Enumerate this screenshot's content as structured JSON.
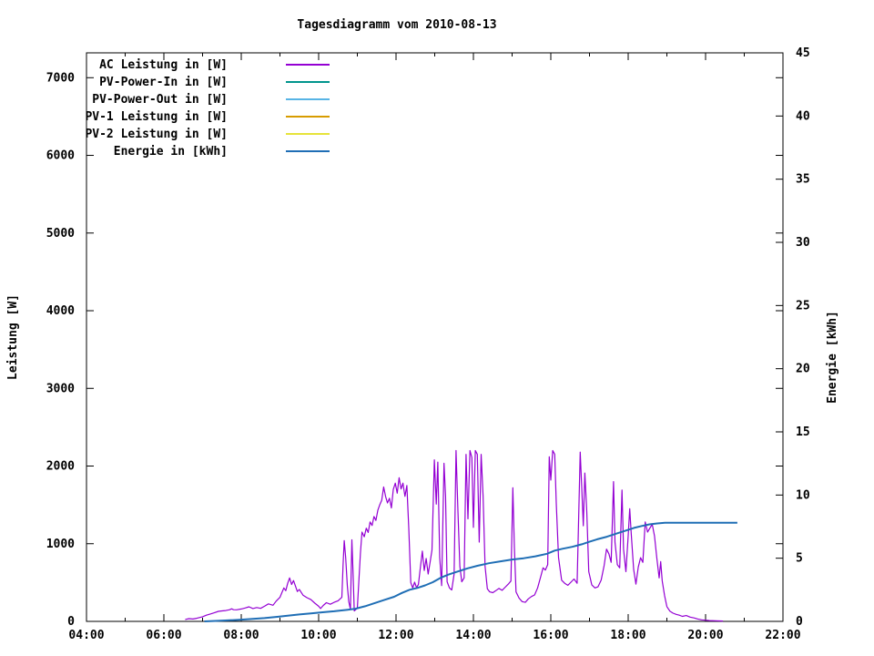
{
  "chart_data": {
    "type": "line",
    "title": "Tagesdiagramm vom 2010-08-13",
    "ylabel": "Leistung [W]",
    "y2label": "Energie [kWh]",
    "grid": false,
    "legend_position": "top-left-inside",
    "x_axis": {
      "unit": "time",
      "range_hours": [
        4,
        22
      ],
      "major_tick_hours": [
        4,
        6,
        8,
        10,
        12,
        14,
        16,
        18,
        20,
        22
      ],
      "major_tick_labels": [
        "04:00",
        "06:00",
        "08:00",
        "10:00",
        "12:00",
        "14:00",
        "16:00",
        "18:00",
        "20:00",
        "22:00"
      ],
      "minor_tick_hours": [
        5,
        7,
        9,
        11,
        13,
        15,
        17,
        19,
        21
      ]
    },
    "y_axis": {
      "label": "Leistung [W]",
      "range": [
        0,
        7320
      ],
      "tick_values": [
        0,
        1000,
        2000,
        3000,
        4000,
        5000,
        6000,
        7000
      ],
      "tick_labels": [
        "0",
        "1000",
        "2000",
        "3000",
        "4000",
        "5000",
        "6000",
        "7000"
      ]
    },
    "y2_axis": {
      "label": "Energie [kWh]",
      "range": [
        0,
        45
      ],
      "tick_values": [
        0,
        5,
        10,
        15,
        20,
        25,
        30,
        35,
        40,
        45
      ],
      "tick_labels": [
        "0",
        "5",
        "10",
        "15",
        "20",
        "25",
        "30",
        "35",
        "40",
        "45"
      ]
    },
    "series": [
      {
        "name": "AC Leistung in [W]",
        "color": "#9400d3",
        "axis": "y1",
        "width": 1.2,
        "points": [
          [
            6.55,
            25
          ],
          [
            6.65,
            35
          ],
          [
            6.75,
            30
          ],
          [
            6.85,
            40
          ],
          [
            7.0,
            60
          ],
          [
            7.1,
            80
          ],
          [
            7.2,
            95
          ],
          [
            7.3,
            110
          ],
          [
            7.41,
            129
          ],
          [
            7.5,
            135
          ],
          [
            7.6,
            140
          ],
          [
            7.7,
            150
          ],
          [
            7.75,
            162
          ],
          [
            7.8,
            150
          ],
          [
            7.88,
            149
          ],
          [
            8.0,
            160
          ],
          [
            8.1,
            172
          ],
          [
            8.2,
            188
          ],
          [
            8.3,
            165
          ],
          [
            8.4,
            178
          ],
          [
            8.5,
            168
          ],
          [
            8.6,
            195
          ],
          [
            8.7,
            225
          ],
          [
            8.82,
            208
          ],
          [
            8.9,
            260
          ],
          [
            9.0,
            310
          ],
          [
            9.05,
            370
          ],
          [
            9.1,
            430
          ],
          [
            9.15,
            395
          ],
          [
            9.2,
            490
          ],
          [
            9.25,
            560
          ],
          [
            9.3,
            475
          ],
          [
            9.35,
            525
          ],
          [
            9.4,
            455
          ],
          [
            9.45,
            385
          ],
          [
            9.5,
            410
          ],
          [
            9.6,
            335
          ],
          [
            9.7,
            305
          ],
          [
            9.8,
            280
          ],
          [
            9.9,
            235
          ],
          [
            10.0,
            195
          ],
          [
            10.05,
            165
          ],
          [
            10.12,
            205
          ],
          [
            10.2,
            240
          ],
          [
            10.3,
            220
          ],
          [
            10.4,
            245
          ],
          [
            10.5,
            265
          ],
          [
            10.6,
            310
          ],
          [
            10.63,
            720
          ],
          [
            10.66,
            1040
          ],
          [
            10.7,
            820
          ],
          [
            10.74,
            460
          ],
          [
            10.78,
            255
          ],
          [
            10.82,
            155
          ],
          [
            10.86,
            1050
          ],
          [
            10.89,
            620
          ],
          [
            10.92,
            135
          ],
          [
            11.0,
            170
          ],
          [
            11.08,
            880
          ],
          [
            11.12,
            1150
          ],
          [
            11.18,
            1090
          ],
          [
            11.23,
            1200
          ],
          [
            11.28,
            1145
          ],
          [
            11.33,
            1280
          ],
          [
            11.38,
            1235
          ],
          [
            11.43,
            1350
          ],
          [
            11.48,
            1300
          ],
          [
            11.53,
            1430
          ],
          [
            11.58,
            1500
          ],
          [
            11.63,
            1560
          ],
          [
            11.68,
            1730
          ],
          [
            11.73,
            1610
          ],
          [
            11.78,
            1525
          ],
          [
            11.83,
            1585
          ],
          [
            11.88,
            1460
          ],
          [
            11.93,
            1700
          ],
          [
            11.98,
            1780
          ],
          [
            12.03,
            1650
          ],
          [
            12.08,
            1850
          ],
          [
            12.13,
            1705
          ],
          [
            12.18,
            1780
          ],
          [
            12.23,
            1610
          ],
          [
            12.28,
            1750
          ],
          [
            12.33,
            1200
          ],
          [
            12.38,
            500
          ],
          [
            12.43,
            430
          ],
          [
            12.48,
            505
          ],
          [
            12.53,
            435
          ],
          [
            12.58,
            475
          ],
          [
            12.63,
            700
          ],
          [
            12.68,
            905
          ],
          [
            12.73,
            655
          ],
          [
            12.78,
            810
          ],
          [
            12.83,
            610
          ],
          [
            12.88,
            760
          ],
          [
            12.93,
            920
          ],
          [
            12.99,
            2080
          ],
          [
            13.04,
            1510
          ],
          [
            13.08,
            2050
          ],
          [
            13.13,
            820
          ],
          [
            13.18,
            460
          ],
          [
            13.24,
            2035
          ],
          [
            13.28,
            1610
          ],
          [
            13.32,
            510
          ],
          [
            13.38,
            430
          ],
          [
            13.44,
            405
          ],
          [
            13.5,
            610
          ],
          [
            13.55,
            2200
          ],
          [
            13.6,
            1420
          ],
          [
            13.65,
            710
          ],
          [
            13.7,
            510
          ],
          [
            13.76,
            560
          ],
          [
            13.81,
            2150
          ],
          [
            13.86,
            1320
          ],
          [
            13.91,
            2200
          ],
          [
            13.96,
            2110
          ],
          [
            14.0,
            1210
          ],
          [
            14.05,
            2200
          ],
          [
            14.1,
            2150
          ],
          [
            14.15,
            1020
          ],
          [
            14.2,
            2150
          ],
          [
            14.25,
            1620
          ],
          [
            14.3,
            710
          ],
          [
            14.36,
            420
          ],
          [
            14.42,
            380
          ],
          [
            14.5,
            370
          ],
          [
            14.58,
            395
          ],
          [
            14.66,
            425
          ],
          [
            14.74,
            400
          ],
          [
            14.82,
            440
          ],
          [
            14.9,
            480
          ],
          [
            14.97,
            520
          ],
          [
            15.02,
            1720
          ],
          [
            15.06,
            950
          ],
          [
            15.1,
            380
          ],
          [
            15.18,
            300
          ],
          [
            15.26,
            255
          ],
          [
            15.34,
            245
          ],
          [
            15.42,
            290
          ],
          [
            15.5,
            320
          ],
          [
            15.58,
            340
          ],
          [
            15.66,
            430
          ],
          [
            15.74,
            580
          ],
          [
            15.8,
            690
          ],
          [
            15.86,
            660
          ],
          [
            15.92,
            730
          ],
          [
            15.96,
            2120
          ],
          [
            16.0,
            1820
          ],
          [
            16.05,
            2200
          ],
          [
            16.1,
            2150
          ],
          [
            16.14,
            1520
          ],
          [
            16.2,
            820
          ],
          [
            16.28,
            530
          ],
          [
            16.36,
            490
          ],
          [
            16.44,
            465
          ],
          [
            16.52,
            505
          ],
          [
            16.6,
            545
          ],
          [
            16.68,
            490
          ],
          [
            16.76,
            2180
          ],
          [
            16.8,
            1720
          ],
          [
            16.84,
            1230
          ],
          [
            16.88,
            1910
          ],
          [
            16.93,
            1420
          ],
          [
            16.98,
            640
          ],
          [
            17.06,
            470
          ],
          [
            17.14,
            430
          ],
          [
            17.22,
            445
          ],
          [
            17.3,
            530
          ],
          [
            17.38,
            720
          ],
          [
            17.44,
            930
          ],
          [
            17.5,
            870
          ],
          [
            17.56,
            760
          ],
          [
            17.62,
            1800
          ],
          [
            17.66,
            1020
          ],
          [
            17.72,
            730
          ],
          [
            17.78,
            690
          ],
          [
            17.84,
            1690
          ],
          [
            17.88,
            930
          ],
          [
            17.94,
            640
          ],
          [
            18.0,
            1100
          ],
          [
            18.04,
            1450
          ],
          [
            18.08,
            1120
          ],
          [
            18.14,
            670
          ],
          [
            18.2,
            480
          ],
          [
            18.26,
            700
          ],
          [
            18.32,
            820
          ],
          [
            18.38,
            760
          ],
          [
            18.44,
            1280
          ],
          [
            18.5,
            1150
          ],
          [
            18.56,
            1200
          ],
          [
            18.62,
            1250
          ],
          [
            18.68,
            1100
          ],
          [
            18.74,
            820
          ],
          [
            18.8,
            560
          ],
          [
            18.84,
            770
          ],
          [
            18.88,
            520
          ],
          [
            18.94,
            330
          ],
          [
            19.0,
            190
          ],
          [
            19.08,
            130
          ],
          [
            19.16,
            105
          ],
          [
            19.24,
            90
          ],
          [
            19.32,
            80
          ],
          [
            19.4,
            65
          ],
          [
            19.5,
            75
          ],
          [
            19.6,
            55
          ],
          [
            19.7,
            45
          ],
          [
            19.8,
            30
          ],
          [
            19.9,
            20
          ],
          [
            20.0,
            15
          ],
          [
            20.1,
            10
          ],
          [
            20.25,
            8
          ],
          [
            20.45,
            5
          ]
        ]
      },
      {
        "name": "PV-Power-In in [W]",
        "color": "#00958d",
        "axis": "y1",
        "width": 2,
        "points": []
      },
      {
        "name": "PV-Power-Out in [W]",
        "color": "#58b4e5",
        "axis": "y1",
        "width": 2,
        "points": []
      },
      {
        "name": "PV-1 Leistung in [W]",
        "color": "#d79c00",
        "axis": "y1",
        "width": 2,
        "points": []
      },
      {
        "name": "PV-2 Leistung in [W]",
        "color": "#e6e33a",
        "axis": "y1",
        "width": 2,
        "points": []
      },
      {
        "name": "Energie in [kWh]",
        "color": "#1f6eb5",
        "axis": "y2",
        "width": 2,
        "points": [
          [
            7.05,
            0.0
          ],
          [
            7.4,
            0.04
          ],
          [
            7.7,
            0.09
          ],
          [
            8.0,
            0.14
          ],
          [
            8.3,
            0.2
          ],
          [
            8.6,
            0.26
          ],
          [
            8.9,
            0.35
          ],
          [
            9.2,
            0.45
          ],
          [
            9.5,
            0.55
          ],
          [
            9.8,
            0.63
          ],
          [
            10.1,
            0.72
          ],
          [
            10.4,
            0.8
          ],
          [
            10.7,
            0.9
          ],
          [
            10.95,
            1.0
          ],
          [
            11.2,
            1.2
          ],
          [
            11.45,
            1.45
          ],
          [
            11.7,
            1.7
          ],
          [
            11.95,
            1.95
          ],
          [
            12.15,
            2.25
          ],
          [
            12.35,
            2.5
          ],
          [
            12.55,
            2.65
          ],
          [
            12.75,
            2.85
          ],
          [
            12.95,
            3.1
          ],
          [
            13.15,
            3.45
          ],
          [
            13.35,
            3.7
          ],
          [
            13.6,
            3.95
          ],
          [
            13.85,
            4.2
          ],
          [
            14.1,
            4.4
          ],
          [
            14.4,
            4.6
          ],
          [
            14.7,
            4.75
          ],
          [
            15.0,
            4.9
          ],
          [
            15.3,
            5.0
          ],
          [
            15.6,
            5.15
          ],
          [
            15.9,
            5.35
          ],
          [
            16.1,
            5.6
          ],
          [
            16.3,
            5.75
          ],
          [
            16.55,
            5.9
          ],
          [
            16.8,
            6.1
          ],
          [
            17.0,
            6.3
          ],
          [
            17.2,
            6.5
          ],
          [
            17.45,
            6.7
          ],
          [
            17.7,
            6.95
          ],
          [
            17.95,
            7.2
          ],
          [
            18.15,
            7.4
          ],
          [
            18.35,
            7.55
          ],
          [
            18.55,
            7.68
          ],
          [
            18.75,
            7.75
          ],
          [
            18.95,
            7.8
          ],
          [
            20.82,
            7.8
          ]
        ]
      }
    ],
    "annotations": {
      "final_energy_kwh": 7.8,
      "ac_peak_w": 2200
    }
  }
}
